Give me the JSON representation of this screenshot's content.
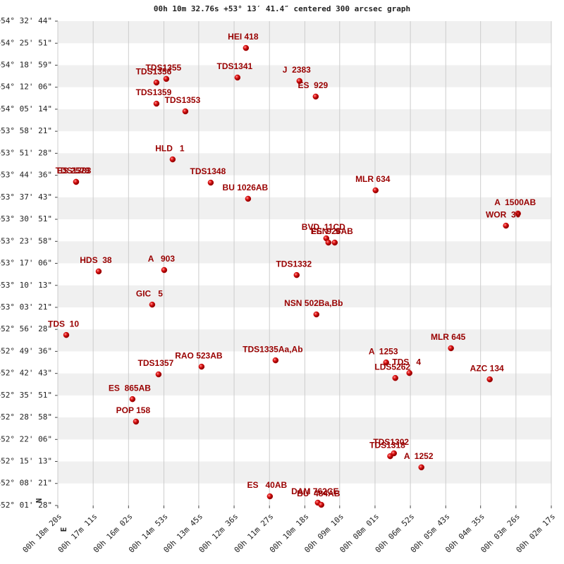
{
  "chart_data": {
    "type": "scatter",
    "title": "00h 10m 32.76s +53° 13′ 41.4″ centered 300 arcsec graph",
    "north_label": "N",
    "east_label": "E",
    "color": "#cc0000",
    "label_color": "#990000",
    "grid": true,
    "xlim": [
      1100,
      137
    ],
    "ylim": [
      52.0244,
      54.5456
    ],
    "xticks": [
      {
        "value": 1100,
        "label": "00h 18m 20s"
      },
      {
        "value": 1031,
        "label": "00h 17m 11s"
      },
      {
        "value": 962,
        "label": "00h 16m 02s"
      },
      {
        "value": 893,
        "label": "00h 14m 53s"
      },
      {
        "value": 825,
        "label": "00h 13m 45s"
      },
      {
        "value": 756,
        "label": "00h 12m 36s"
      },
      {
        "value": 687,
        "label": "00h 11m 27s"
      },
      {
        "value": 618,
        "label": "00h 10m 18s"
      },
      {
        "value": 550,
        "label": "00h 09m 10s"
      },
      {
        "value": 481,
        "label": "00h 08m 01s"
      },
      {
        "value": 412,
        "label": "00h 06m 52s"
      },
      {
        "value": 343,
        "label": "00h 05m 43s"
      },
      {
        "value": 275,
        "label": "00h 04m 35s"
      },
      {
        "value": 206,
        "label": "00h 03m 26s"
      },
      {
        "value": 137,
        "label": "00h 02m 17s"
      }
    ],
    "yticks": [
      {
        "value": 54.5456,
        "label": "+54° 32' 44\""
      },
      {
        "value": 54.4308,
        "label": "+54° 25' 51\""
      },
      {
        "value": 54.3164,
        "label": "+54° 18' 59\""
      },
      {
        "value": 54.2017,
        "label": "+54° 12' 06\""
      },
      {
        "value": 54.0872,
        "label": "+54° 05' 14\""
      },
      {
        "value": 53.9725,
        "label": "+53° 58' 21\""
      },
      {
        "value": 53.8578,
        "label": "+53° 51' 28\""
      },
      {
        "value": 53.7433,
        "label": "+53° 44' 36\""
      },
      {
        "value": 53.6286,
        "label": "+53° 37' 43\""
      },
      {
        "value": 53.5142,
        "label": "+53° 30' 51\""
      },
      {
        "value": 53.3994,
        "label": "+53° 23' 58\""
      },
      {
        "value": 53.285,
        "label": "+53° 17' 06\""
      },
      {
        "value": 53.1703,
        "label": "+53° 10' 13\""
      },
      {
        "value": 53.0558,
        "label": "+53° 03' 21\""
      },
      {
        "value": 52.9411,
        "label": "+52° 56' 28\""
      },
      {
        "value": 52.8267,
        "label": "+52° 49' 36\""
      },
      {
        "value": 52.7119,
        "label": "+52° 42' 43\""
      },
      {
        "value": 52.5975,
        "label": "+52° 35' 51\""
      },
      {
        "value": 52.4828,
        "label": "+52° 28' 58\""
      },
      {
        "value": 52.3683,
        "label": "+52° 22' 06\""
      },
      {
        "value": 52.2536,
        "label": "+52° 15' 13\""
      },
      {
        "value": 52.1392,
        "label": "+52° 08' 21\""
      },
      {
        "value": 52.0244,
        "label": "+52° 01' 28\""
      }
    ],
    "labels": [
      "HEI 418",
      "TDS1355",
      "TDS1356",
      "TDS1341",
      "J  2383",
      "ES  929",
      "TDS1359",
      "TDS1353",
      "HLD   1",
      "TDS1383",
      "ES 2578",
      "TDS1348",
      "BU 1026AB",
      "MLR 634",
      "A  1500AB",
      "WOR  30",
      "BVD  11CD",
      "FEN   9",
      "ES  926AB",
      "HDS  38",
      "A   903",
      "TDS1332",
      "GIC   5",
      "NSN 502Ba,Bb",
      "TDS  10",
      "MLR 645",
      "TDS1335Aa,Ab",
      "A  1253",
      "TDS   4",
      "LDS5262",
      "RAO 523AB",
      "TDS1357",
      "AZC 134",
      "ES  865AB",
      "POP 158",
      "TDS1318",
      "TDS1302",
      "A  1252",
      "ES   40AB",
      "DAM 762CE",
      "BU  484AB"
    ],
    "x": [
      732.9,
      888.3,
      907.5,
      749.4,
      628.4,
      596.7,
      907.5,
      851.1,
      875.9,
      1064.3,
      1064.3,
      801.6,
      728.7,
      479.9,
      202.1,
      225.5,
      576.1,
      572.0,
      559.6,
      1020.3,
      892.4,
      633.9,
      915.8,
      595.4,
      1083.5,
      332.8,
      675.1,
      459.3,
      413.9,
      441.4,
      819.5,
      903.4,
      257.1,
      954.3,
      947.4,
      451.4,
      444.1,
      390.5,
      686.1,
      592.6,
      585.8
    ],
    "values": [
      54.406,
      54.245,
      54.226,
      54.252,
      54.234,
      54.153,
      54.116,
      54.076,
      53.826,
      53.709,
      53.709,
      53.705,
      53.621,
      53.665,
      53.544,
      53.481,
      53.415,
      53.393,
      53.393,
      53.243,
      53.25,
      53.224,
      53.07,
      53.019,
      52.912,
      52.843,
      52.78,
      52.769,
      52.714,
      52.688,
      52.747,
      52.707,
      52.681,
      52.578,
      52.461,
      52.281,
      52.296,
      52.223,
      52.072,
      52.039,
      52.028
    ]
  }
}
